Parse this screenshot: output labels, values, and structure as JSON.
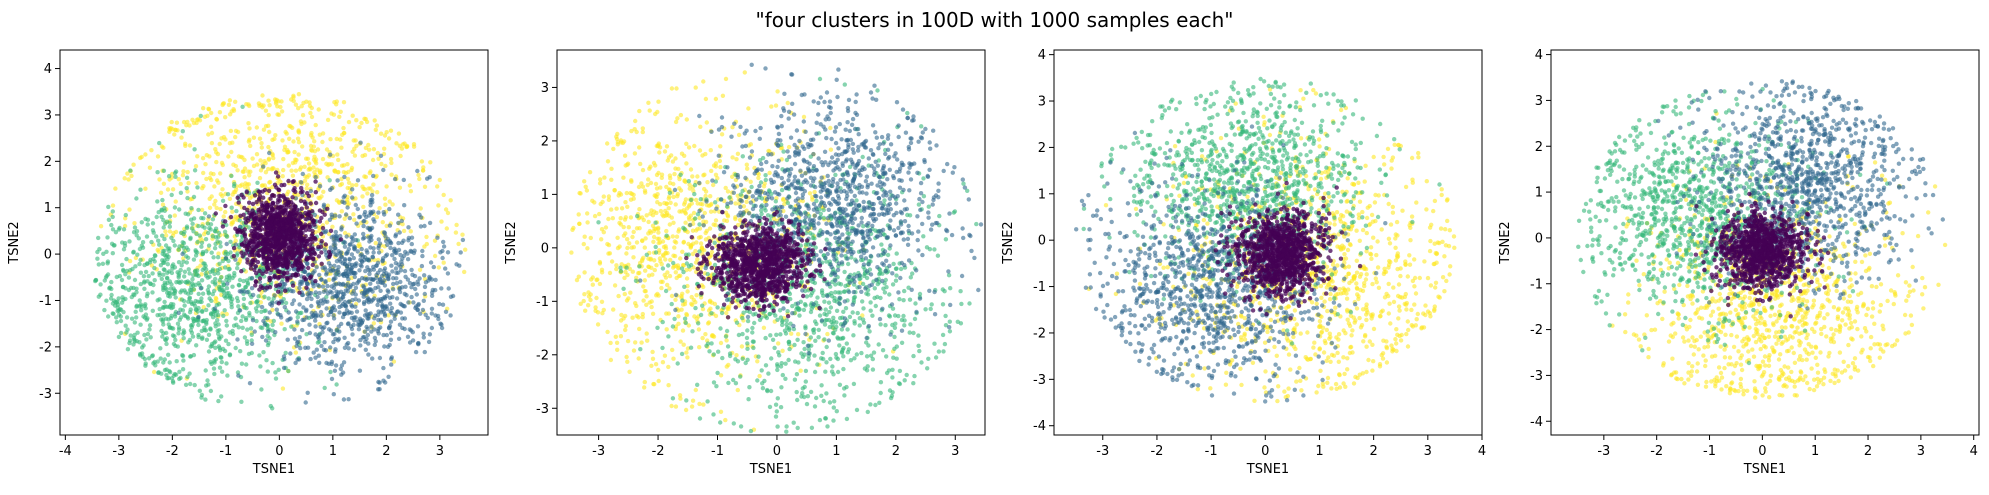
{
  "figure": {
    "title": "\"four clusters in 100D with 1000 samples each\""
  },
  "colors": {
    "cluster_0": "#440154",
    "cluster_1": "#31688e",
    "cluster_2": "#35b779",
    "cluster_3": "#fde725"
  },
  "chart_data": [
    {
      "type": "scatter",
      "title": "",
      "xlabel": "TSNE1",
      "ylabel": "TSNE2",
      "xlim": [
        -4.1,
        3.9
      ],
      "ylim": [
        -3.9,
        4.4
      ],
      "xticks": [
        -4,
        -3,
        -2,
        -1,
        0,
        1,
        2,
        3
      ],
      "yticks": [
        -3,
        -2,
        -1,
        0,
        1,
        2,
        3,
        4
      ],
      "grid": false,
      "legend": "none",
      "series": [
        {
          "center": [
            0.0,
            0.4
          ],
          "spread": [
            0.35,
            0.45
          ],
          "count": 1000
        },
        {
          "center": [
            1.3,
            -0.6
          ],
          "spread": [
            0.9,
            0.95
          ],
          "count": 1000
        },
        {
          "center": [
            -1.5,
            -0.8
          ],
          "spread": [
            1.05,
            1.05
          ],
          "count": 1000
        },
        {
          "center": [
            0.1,
            1.2
          ],
          "spread": [
            1.4,
            1.3
          ],
          "count": 1000
        }
      ]
    },
    {
      "type": "scatter",
      "title": "",
      "xlabel": "TSNE1",
      "ylabel": "TSNE2",
      "xlim": [
        -3.7,
        3.5
      ],
      "ylim": [
        -3.5,
        3.7
      ],
      "xticks": [
        -3,
        -2,
        -1,
        0,
        1,
        2,
        3
      ],
      "yticks": [
        -3,
        -2,
        -1,
        0,
        1,
        2,
        3
      ],
      "grid": false,
      "legend": "none",
      "series": [
        {
          "center": [
            -0.3,
            -0.3
          ],
          "spread": [
            0.4,
            0.35
          ],
          "count": 1000
        },
        {
          "center": [
            1.0,
            0.8
          ],
          "spread": [
            0.95,
            0.95
          ],
          "count": 1000
        },
        {
          "center": [
            0.6,
            -0.8
          ],
          "spread": [
            1.15,
            1.15
          ],
          "count": 1000
        },
        {
          "center": [
            -1.4,
            0.1
          ],
          "spread": [
            1.1,
            1.2
          ],
          "count": 1000
        }
      ]
    },
    {
      "type": "scatter",
      "title": "",
      "xlabel": "TSNE1",
      "ylabel": "TSNE2",
      "xlim": [
        -3.9,
        4.0
      ],
      "ylim": [
        -4.2,
        4.1
      ],
      "xticks": [
        -3,
        -2,
        -1,
        0,
        1,
        2,
        3,
        4
      ],
      "yticks": [
        -4,
        -3,
        -2,
        -1,
        0,
        1,
        2,
        3,
        4
      ],
      "grid": false,
      "legend": "none",
      "series": [
        {
          "center": [
            0.3,
            -0.3
          ],
          "spread": [
            0.4,
            0.45
          ],
          "count": 1000
        },
        {
          "center": [
            -1.0,
            -0.9
          ],
          "spread": [
            1.0,
            1.1
          ],
          "count": 1000
        },
        {
          "center": [
            -0.3,
            1.3
          ],
          "spread": [
            1.1,
            1.0
          ],
          "count": 1000
        },
        {
          "center": [
            1.0,
            -0.6
          ],
          "spread": [
            1.3,
            1.4
          ],
          "count": 1000
        }
      ]
    },
    {
      "type": "scatter",
      "title": "",
      "xlabel": "TSNE1",
      "ylabel": "TSNE2",
      "xlim": [
        -4.0,
        4.1
      ],
      "ylim": [
        -4.3,
        4.1
      ],
      "xticks": [
        -3,
        -2,
        -1,
        0,
        1,
        2,
        3,
        4
      ],
      "yticks": [
        -4,
        -3,
        -2,
        -1,
        0,
        1,
        2,
        3,
        4
      ],
      "grid": false,
      "legend": "none",
      "series": [
        {
          "center": [
            0.0,
            -0.3
          ],
          "spread": [
            0.4,
            0.4
          ],
          "count": 1000
        },
        {
          "center": [
            0.8,
            1.2
          ],
          "spread": [
            1.0,
            1.0
          ],
          "count": 1000
        },
        {
          "center": [
            -1.3,
            0.5
          ],
          "spread": [
            1.1,
            1.1
          ],
          "count": 1000
        },
        {
          "center": [
            0.2,
            -1.4
          ],
          "spread": [
            1.2,
            1.2
          ],
          "count": 1000
        }
      ]
    }
  ]
}
